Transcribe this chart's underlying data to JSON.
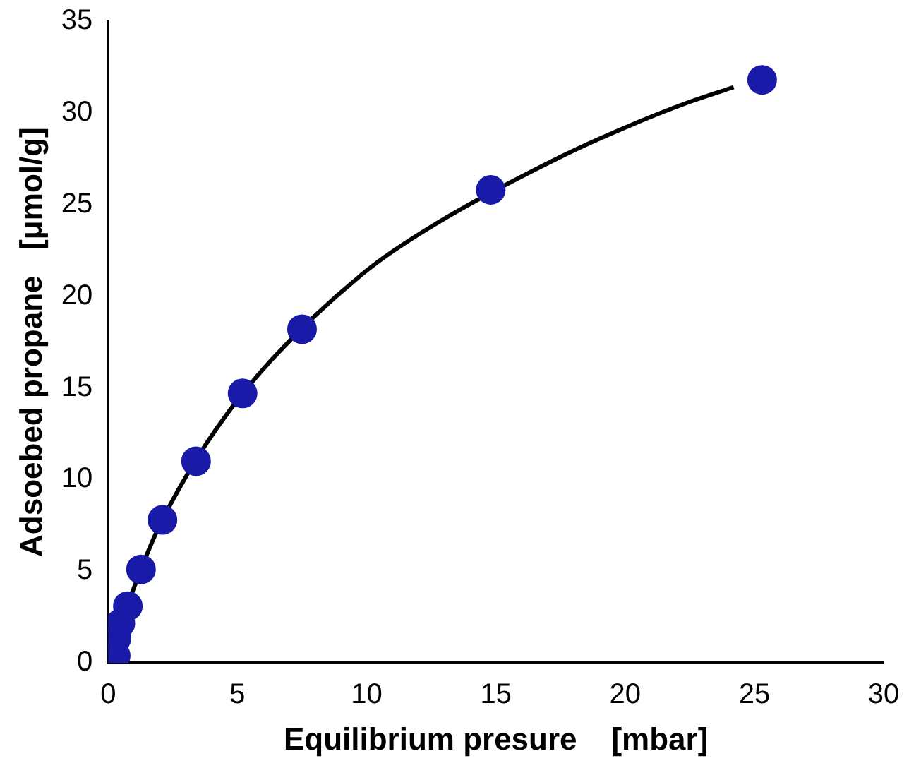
{
  "chart_data": {
    "type": "scatter",
    "xlabel": "Equilibrium presure    [mbar]",
    "ylabel": "Adsoebed propane   [μmol/g]",
    "xlim": [
      0,
      30
    ],
    "xticks": [
      0,
      5,
      10,
      15,
      20,
      25,
      30
    ],
    "ylim": [
      0,
      35
    ],
    "yticks": [
      0,
      5,
      10,
      15,
      20,
      25,
      30,
      35
    ],
    "grid": false,
    "legend": false,
    "marker": "circle",
    "series": [
      {
        "type": "line",
        "color": "#000000",
        "marker": "none",
        "line_style": "solid",
        "x": [
          0,
          0.15,
          1.7,
          2.7,
          4.2,
          6.3,
          10,
          12.5,
          17.5,
          20,
          22.5,
          24.2
        ],
        "values": [
          0,
          0.7,
          6.6,
          9.4,
          12.8,
          16.5,
          21.4,
          23.8,
          27.6,
          29.2,
          30.6,
          31.4
        ]
      },
      {
        "color": "#1a1aa8",
        "x": [
          0.29,
          0.32,
          0.47,
          0.76,
          1.27,
          2.1,
          3.4,
          5.2,
          7.5,
          14.8,
          25.3
        ],
        "values": [
          0.4,
          1.35,
          2.15,
          3.1,
          5.1,
          7.8,
          11.0,
          14.7,
          18.2,
          25.8,
          31.8
        ]
      }
    ]
  }
}
